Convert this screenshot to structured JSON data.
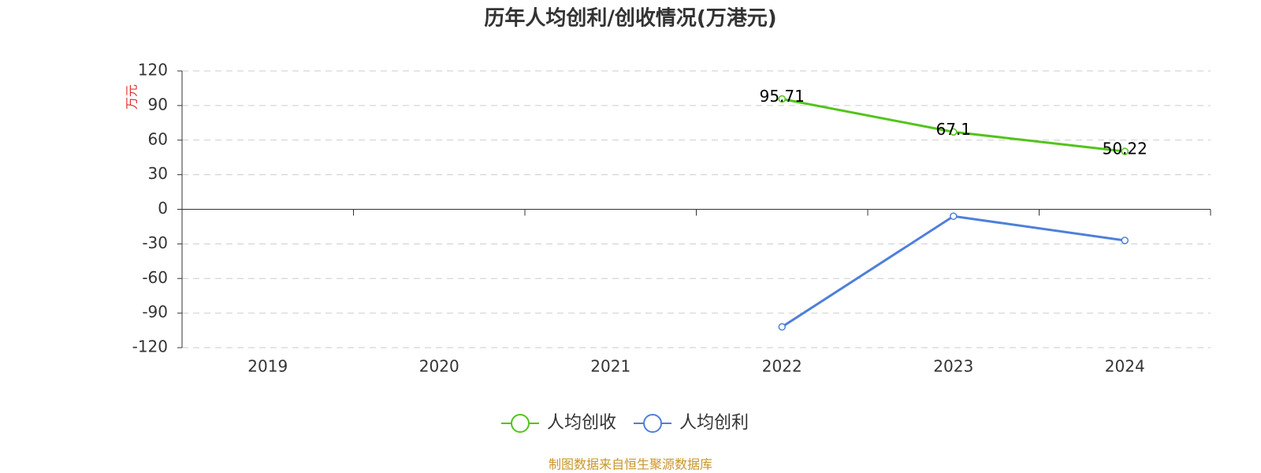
{
  "chart_data": {
    "type": "line",
    "title": "历年人均创利/创收情况(万港元)",
    "y_label": "万元",
    "categories": [
      "2019",
      "2020",
      "2021",
      "2022",
      "2023",
      "2024"
    ],
    "series": [
      {
        "name": "人均创收",
        "color": "#52c41a",
        "values": [
          null,
          null,
          null,
          95.71,
          67.1,
          50.22
        ],
        "show_labels": true
      },
      {
        "name": "人均创利",
        "color": "#4e7fdb",
        "values": [
          null,
          null,
          null,
          -102,
          -6,
          -27
        ],
        "show_labels": false
      }
    ],
    "ylim": [
      -120,
      120
    ],
    "yticks": [
      -120,
      -90,
      -60,
      -30,
      0,
      30,
      60,
      90,
      120
    ],
    "grid": true,
    "source": "制图数据来自恒生聚源数据库"
  }
}
